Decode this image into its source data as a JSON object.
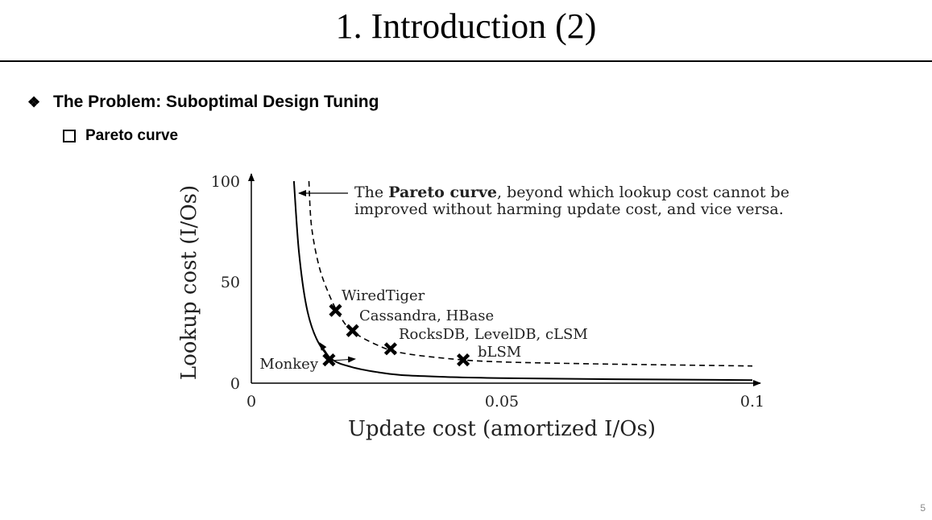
{
  "slide": {
    "title": "1. Introduction (2)",
    "bullet_level1": "The Problem: Suboptimal Design Tuning",
    "bullet_level2": "Pareto curve",
    "page_number": "5"
  },
  "chart_data": {
    "type": "line",
    "xlabel": "Update cost (amortized I/Os)",
    "ylabel": "Lookup cost (I/Os)",
    "xlim": [
      0,
      0.1
    ],
    "ylim": [
      0,
      100
    ],
    "x_ticks": [
      "0",
      "0.05",
      "0.1"
    ],
    "y_ticks": [
      "0",
      "50",
      "100"
    ],
    "grid": false,
    "annotation": {
      "prefix": "The ",
      "bold": "Pareto curve",
      "suffix": ", beyond which lookup cost cannot be",
      "line2": "improved without harming update cost, and vice versa."
    },
    "series": [
      {
        "style": "solid",
        "x": [
          0.0085,
          0.0095,
          0.011,
          0.013,
          0.016,
          0.02,
          0.025,
          0.03,
          0.04,
          0.05,
          0.07,
          0.1
        ],
        "y": [
          100,
          65,
          38,
          22,
          12,
          8,
          5.5,
          4,
          3,
          2.5,
          2,
          1.5
        ]
      },
      {
        "style": "dashed",
        "x": [
          0.0115,
          0.012,
          0.0135,
          0.0155,
          0.0175,
          0.02,
          0.025,
          0.03,
          0.04,
          0.05,
          0.07,
          0.1
        ],
        "y": [
          100,
          78,
          58,
          44,
          34,
          26,
          19,
          15,
          12,
          10.5,
          9.5,
          8.5
        ]
      }
    ],
    "points": [
      {
        "label": "WiredTiger",
        "x": 0.0168,
        "y": 36
      },
      {
        "label": "Cassandra, HBase",
        "x": 0.0202,
        "y": 26
      },
      {
        "label": "RocksDB, LevelDB, cLSM",
        "x": 0.0278,
        "y": 17
      },
      {
        "label": "bLSM",
        "x": 0.0423,
        "y": 11.5
      },
      {
        "label": "Monkey",
        "x": 0.0155,
        "y": 11.5
      }
    ]
  }
}
